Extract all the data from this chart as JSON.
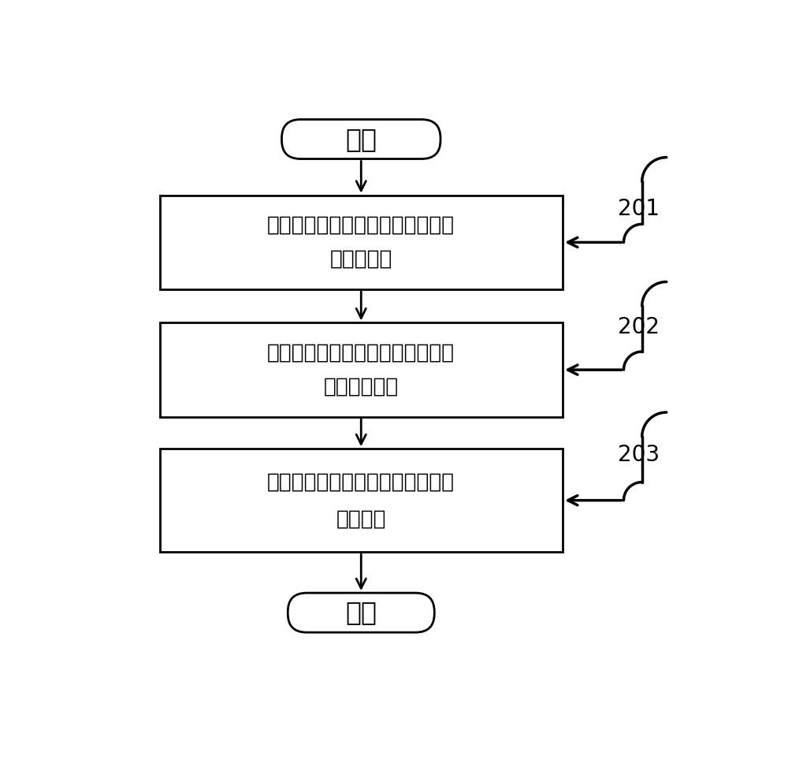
{
  "background_color": "#ffffff",
  "start_label": "开始",
  "end_label": "结束",
  "box1_line1": "根据精度要求，确定两点间的索段",
  "box1_line2": "的离散点数",
  "box2_line1": "根据离散点数，等分索段在水平投",
  "box2_line2": "影面上的直线",
  "box3_line1": "利用曲面方程，计算曲面索段的节",
  "box3_line2": "点坐标値",
  "label_201": "201",
  "label_202": "202",
  "label_203": "203",
  "text_color": "#000000",
  "box_edge_color": "#000000",
  "arrow_color": "#000000",
  "font_size_box": 19,
  "font_size_label": 20,
  "font_size_terminal": 24
}
